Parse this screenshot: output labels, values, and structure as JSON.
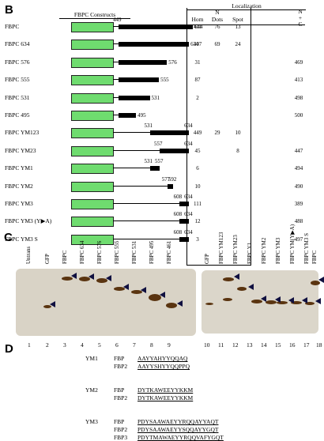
{
  "panels": {
    "b": "B",
    "c": "C",
    "d": "D"
  },
  "header": {
    "constructs_title": "FBPC  Constructs",
    "localization": "Localization",
    "hom": "Hom",
    "n_dots": "N\nDots",
    "spot": "Spot",
    "nc": "N\n+\nC"
  },
  "constructs": [
    {
      "name": "FBPC",
      "start": "449",
      "end": "644",
      "hom": "411",
      "dots": "76",
      "spot": "13",
      "nc": ""
    },
    {
      "name": "FBPC  634",
      "start": "",
      "end": "634",
      "hom": "407",
      "dots": "69",
      "spot": "24",
      "nc": ""
    },
    {
      "name": "FBPC  576",
      "start": "",
      "end": "576",
      "hom": "31",
      "dots": "",
      "spot": "",
      "nc": "469"
    },
    {
      "name": "FBPC  555",
      "start": "",
      "end": "555",
      "hom": "87",
      "dots": "",
      "spot": "",
      "nc": "413"
    },
    {
      "name": "FBPC  531",
      "start": "",
      "end": "531",
      "hom": "2",
      "dots": "",
      "spot": "",
      "nc": "498"
    },
    {
      "name": "FBPC  495",
      "start": "",
      "end": "495",
      "hom": "",
      "dots": "",
      "spot": "",
      "nc": "500"
    },
    {
      "name": "FBPC  YM123",
      "start": "531",
      "end": "634",
      "hom": "449",
      "dots": "29",
      "spot": "10",
      "nc": ""
    },
    {
      "name": "FBPC  YM23",
      "start": "557",
      "end": "634",
      "hom": "45",
      "dots": "",
      "spot": "8",
      "nc": "447"
    },
    {
      "name": "FBPC  YM1",
      "start": "531",
      "end": "557",
      "hom": "6",
      "dots": "",
      "spot": "",
      "nc": "494"
    },
    {
      "name": "FBPC  YM2",
      "start": "577",
      "end": "592",
      "hom": "10",
      "dots": "",
      "spot": "",
      "nc": "490"
    },
    {
      "name": "FBPC  YM3",
      "start": "608",
      "end": "634",
      "hom": "111",
      "dots": "",
      "spot": "",
      "nc": "389"
    },
    {
      "name": "FBPC  YM3 (Y▶A)",
      "start": "608",
      "end": "634",
      "hom": "12",
      "dots": "",
      "spot": "",
      "nc": "488"
    },
    {
      "name": "FBPC  YM3 S",
      "start": "608",
      "end": "634",
      "hom": "3",
      "dots": "",
      "spot": "",
      "nc": "497"
    }
  ],
  "gel_left_lanes": [
    "Untrans",
    "GFP",
    "FBPC",
    "FBPC  634",
    "FBPC  576",
    "FBPC  555",
    "FBPC  531",
    "FBPC  495",
    "FBPC  461"
  ],
  "gel_right_lanes": [
    "GFP",
    "FBPC  YM123",
    "FBPC  YM23",
    "FBPC  Y1",
    "FBPC  YM2",
    "FBPC  YM3",
    "FBPC  YM(Y▶A)",
    "FBPC  YM3 S",
    "FBPC"
  ],
  "lane_numbers": [
    "1",
    "2",
    "3",
    "4",
    "5",
    "6",
    "7",
    "8",
    "9",
    "10",
    "11",
    "12",
    "13",
    "14",
    "15",
    "16",
    "17",
    "18"
  ],
  "sequences": [
    {
      "group": "YM1",
      "rows": [
        {
          "key": "FBP",
          "seq": "AAYYAHYYQQAQ"
        },
        {
          "key": "FBP2",
          "seq": "AAYYSHYYQQPPQ"
        }
      ]
    },
    {
      "group": "YM2",
      "rows": [
        {
          "key": "FBP",
          "seq": "DYTKAWEEYYKKM"
        },
        {
          "key": "FBP2",
          "seq": "DYTKAWEEYYKKM"
        }
      ]
    },
    {
      "group": "YM3",
      "rows": [
        {
          "key": "FBP",
          "seq": "PDYSAAWAEYYRQQAYYAQT"
        },
        {
          "key": "FBP2",
          "seq": "PDYSAAWAEYYSQQAYYGQT"
        },
        {
          "key": "FBP3",
          "seq": "PDYTMAWAEYYRQQVAFYGQT"
        }
      ]
    }
  ]
}
